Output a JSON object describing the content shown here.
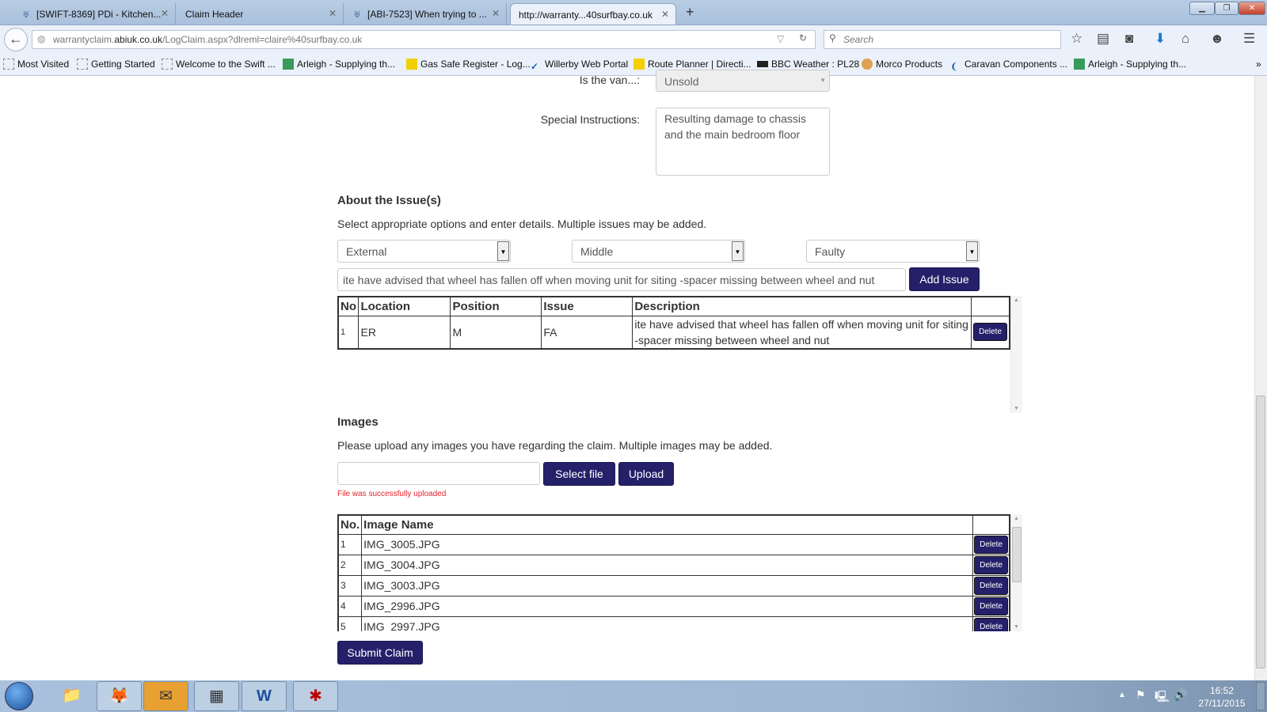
{
  "browser": {
    "tabs": [
      {
        "label": "[SWIFT-8369] PDi - Kitchen...",
        "icon": "jira-icon"
      },
      {
        "label": "Claim Header"
      },
      {
        "label": "[ABI-7523] When trying to ...",
        "icon": "jira-icon"
      },
      {
        "label": "http://warranty...40surfbay.co.uk",
        "active": true
      }
    ],
    "url_host": "warrantyclaim.abiuk.co.uk",
    "url_prefix": "warrantyclaim.",
    "url_domain": "abiuk.co.uk",
    "url_path": "/LogClaim.aspx?dlreml=claire%40surfbay.co.uk",
    "search_placeholder": "Search",
    "bookmarks": [
      "Most Visited",
      "Getting Started",
      "Welcome to the Swift ...",
      "Arleigh - Supplying th...",
      "Gas Safe Register - Log...",
      "Willerby Web Portal",
      "Route Planner | Directi...",
      "BBC Weather : PL28",
      "Morco Products",
      "Caravan Components ...",
      "Arleigh - Supplying th..."
    ]
  },
  "form": {
    "van_label": "Is the van...:",
    "van_value": "Unsold",
    "instructions_label": "Special Instructions:",
    "instructions_value": "Resulting damage to chassis and the main bedroom floor",
    "issues": {
      "heading": "About the Issue(s)",
      "intro": "Select appropriate options and enter details. Multiple issues may be added.",
      "location": "External",
      "position": "Middle",
      "issue": "Faulty",
      "description_value": "ite have advised that wheel has fallen off when moving unit for siting -spacer missing between wheel and nut",
      "add_label": "Add Issue",
      "columns": [
        "No",
        "Location",
        "Position",
        "Issue",
        "Description",
        ""
      ],
      "rows": [
        {
          "no": "1",
          "location": "ER",
          "position": "M",
          "issue": "FA",
          "description": "ite have advised that wheel has fallen off when moving unit for siting -spacer missing between wheel and nut",
          "delete": "Delete"
        }
      ]
    },
    "images": {
      "heading": "Images",
      "intro": "Please upload any images you have regarding the claim. Multiple images may be added.",
      "select_label": "Select file",
      "upload_label": "Upload",
      "status": "File was successfully uploaded",
      "status_color": "#e8202a",
      "columns": [
        "No.",
        "Image Name",
        ""
      ],
      "rows": [
        {
          "no": "1",
          "name": "IMG_3005.JPG",
          "delete": "Delete"
        },
        {
          "no": "2",
          "name": "IMG_3004.JPG",
          "delete": "Delete"
        },
        {
          "no": "3",
          "name": "IMG_3003.JPG",
          "delete": "Delete"
        },
        {
          "no": "4",
          "name": "IMG_2996.JPG",
          "delete": "Delete"
        },
        {
          "no": "5",
          "name": "IMG_2997.JPG",
          "delete": "Delete"
        }
      ]
    },
    "submit_label": "Submit Claim",
    "accent": "#25206a"
  },
  "taskbar": {
    "time": "16:52",
    "date": "27/11/2015"
  }
}
